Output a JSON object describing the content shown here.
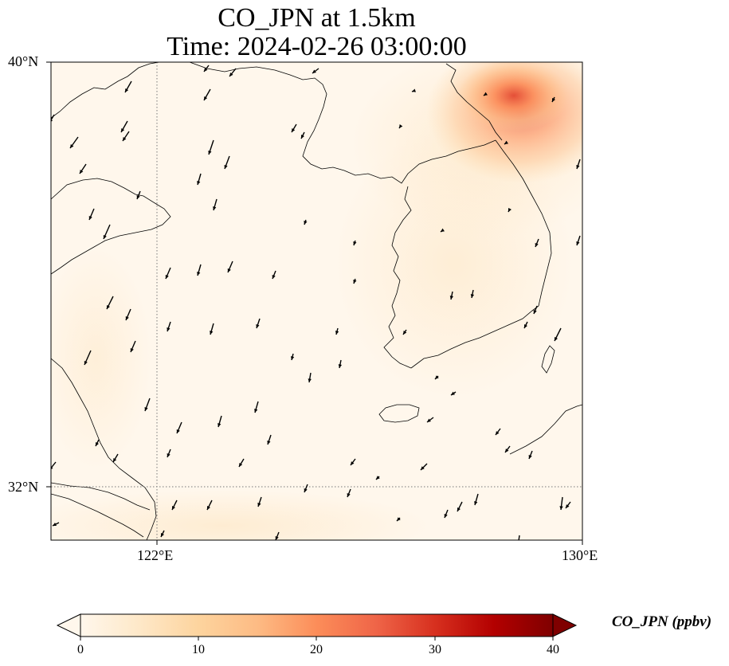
{
  "title": {
    "line1": "CO_JPN at 1.5km",
    "line2": "Time: 2024-02-26 03:00:00"
  },
  "map": {
    "lon_range": [
      119,
      130
    ],
    "lat_range": [
      31,
      40
    ],
    "lat_ticks": [
      {
        "value": 40,
        "label": "40°N"
      },
      {
        "value": 32,
        "label": "32°N"
      }
    ],
    "lon_ticks": [
      {
        "value": 122,
        "label": "122°E"
      },
      {
        "value": 130,
        "label": "130°E"
      }
    ],
    "gridlines": {
      "lon": [
        122
      ],
      "lat": [
        32
      ],
      "style": "dotted"
    },
    "background_color": "#fff7ec",
    "coastline_color": "#000000"
  },
  "chart_data": {
    "type": "heatmap",
    "title": "CO_JPN at 1.5km\nTime: 2024-02-26 03:00:00",
    "variable": "CO_JPN",
    "units": "ppbv",
    "plume": {
      "center_lon": 127.8,
      "center_lat": 39.2,
      "max_value": 22,
      "extent": "northeast corner"
    },
    "wind_vectors": "black arrows predominantly pointing south-southwest"
  },
  "colorbar": {
    "label": "CO_JPN (ppbv)",
    "min": 0,
    "max": 40,
    "ticks": [
      {
        "value": 0,
        "label": "0"
      },
      {
        "value": 10,
        "label": "10"
      },
      {
        "value": 20,
        "label": "20"
      },
      {
        "value": 30,
        "label": "30"
      },
      {
        "value": 40,
        "label": "40"
      }
    ],
    "colors": [
      "#fff7ec",
      "#fee8c8",
      "#fdd49e",
      "#fdbb84",
      "#fc8d59",
      "#ef6548",
      "#d7301f",
      "#b30000",
      "#7f0000"
    ],
    "extend": "both"
  }
}
